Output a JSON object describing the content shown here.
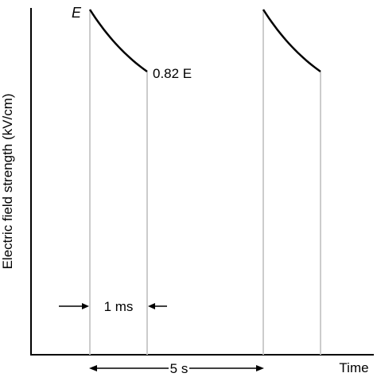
{
  "chart_data": {
    "type": "line",
    "ylabel": "Electric field strength (kV/cm)",
    "xlabel": "Time",
    "pulses": [
      {
        "start_label": "E",
        "end_label": "0.82 E",
        "start_value": 1.0,
        "end_value": 0.82
      },
      {
        "start_label": "",
        "end_label": "",
        "start_value": 1.0,
        "end_value": 0.82
      }
    ],
    "annotations": {
      "pulse_width": "1 ms",
      "pulse_interval": "5 s"
    }
  },
  "colors": {
    "axis": "#000000",
    "curve": "#000000",
    "guide_line": "#cccccc",
    "background": "#ffffff"
  }
}
